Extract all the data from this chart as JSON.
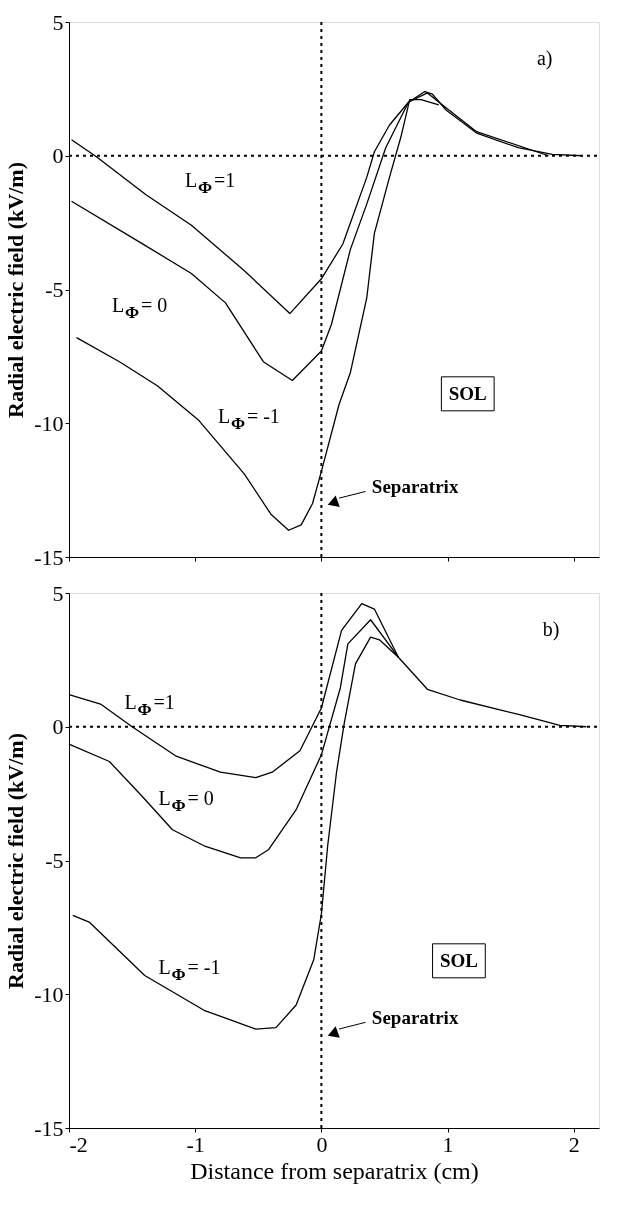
{
  "chart_data": [
    {
      "type": "line",
      "ylabel": "Radial electric field (kV/m)",
      "xlim": [
        -2,
        2.2
      ],
      "xticks": [
        -2,
        -1,
        0,
        1,
        2
      ],
      "ylim": [
        -15,
        5
      ],
      "yticks": [
        -15,
        -10,
        -5,
        0,
        5
      ],
      "tick_labels": "y",
      "grid": false,
      "line_style": "solid",
      "marker": "none",
      "annotations": [
        "a)",
        "SOL"
      ],
      "ref_lines": [
        {
          "axis": "x",
          "value": 0,
          "label": "Separatrix",
          "line_style": "dotted",
          "color": "#000000"
        },
        {
          "axis": "y",
          "value": 0,
          "line_style": "dotted",
          "color": "#000000"
        }
      ],
      "series": [
        {
          "name": "L$_{Φ}$=1",
          "color": "#000000",
          "x": [
            -1.98,
            -1.78,
            -1.39,
            -1.03,
            -0.61,
            -0.25,
            0,
            0.17,
            0.36,
            0.42,
            0.54,
            0.69,
            0.82,
            0.88,
            0.99,
            1.23,
            1.56,
            1.83,
            2.07
          ],
          "values": [
            0.6,
            -0.05,
            -1.46,
            -2.6,
            -4.3,
            -5.9,
            -4.6,
            -3.3,
            -0.8,
            0.15,
            1.15,
            2.0,
            2.4,
            2.3,
            1.7,
            0.85,
            0.3,
            0.05,
            0
          ]
        },
        {
          "name": "L$_{Φ}$= 0",
          "color": "#000000",
          "x": [
            -1.98,
            -1.45,
            -1.03,
            -0.76,
            -0.46,
            -0.23,
            0,
            0.08,
            0.23,
            0.36,
            0.51,
            0.69,
            0.84,
            0.96,
            1.23,
            1.8
          ],
          "values": [
            -1.7,
            -3.2,
            -4.4,
            -5.5,
            -7.7,
            -8.4,
            -7.3,
            -6.3,
            -3.5,
            -1.8,
            0.3,
            2.0,
            2.35,
            1.9,
            0.9,
            0
          ]
        },
        {
          "name": "L$_{Φ}$= -1",
          "color": "#000000",
          "x": [
            -1.94,
            -1.6,
            -1.3,
            -0.97,
            -0.61,
            -0.4,
            -0.26,
            -0.16,
            -0.07,
            0,
            0.14,
            0.23,
            0.36,
            0.42,
            0.54,
            0.63,
            0.7,
            0.79,
            0.93
          ],
          "values": [
            -6.8,
            -7.7,
            -8.6,
            -9.9,
            -11.9,
            -13.4,
            -14.0,
            -13.8,
            -13.0,
            -11.8,
            -9.3,
            -8.1,
            -5.3,
            -2.9,
            -0.8,
            0.7,
            2.1,
            2.1,
            1.9
          ]
        }
      ]
    },
    {
      "type": "line",
      "xlabel": "Distance from separatrix (cm)",
      "ylabel": "Radial electric field (kV/m)",
      "xlim": [
        -2,
        2.2
      ],
      "xticks": [
        -2,
        -1,
        0,
        1,
        2
      ],
      "ylim": [
        -15,
        5
      ],
      "yticks": [
        -15,
        -10,
        -5,
        0,
        5
      ],
      "grid": false,
      "line_style": "solid",
      "marker": "none",
      "annotations": [
        "b)",
        "SOL"
      ],
      "ref_lines": [
        {
          "axis": "x",
          "value": 0,
          "label": "Separatrix",
          "line_style": "dotted",
          "color": "#000000"
        },
        {
          "axis": "y",
          "value": 0,
          "line_style": "dotted",
          "color": "#000000"
        }
      ],
      "series": [
        {
          "name": "L$_{Φ}$=1",
          "color": "#000000",
          "x": [
            -2,
            -1.75,
            -1.5,
            -1.15,
            -0.8,
            -0.52,
            -0.39,
            -0.17,
            0,
            0.16,
            0.32,
            0.42,
            0.61,
            0.84,
            1.1,
            1.57,
            1.89,
            2.1
          ],
          "values": [
            1.2,
            0.85,
            0,
            -1.1,
            -1.7,
            -1.9,
            -1.7,
            -0.9,
            0.7,
            3.6,
            4.6,
            4.4,
            2.6,
            1.4,
            1.0,
            0.45,
            0.05,
            0
          ]
        },
        {
          "name": "L$_{Φ}$= 0",
          "color": "#000000",
          "x": [
            -2,
            -1.68,
            -1.43,
            -1.18,
            -0.93,
            -0.64,
            -0.52,
            -0.42,
            -0.2,
            0,
            0.15,
            0.21,
            0.39,
            0.61
          ],
          "values": [
            -0.65,
            -1.3,
            -2.55,
            -3.85,
            -4.45,
            -4.9,
            -4.9,
            -4.6,
            -3.1,
            -1.05,
            1.45,
            3.1,
            4.0,
            2.6
          ]
        },
        {
          "name": "L$_{Φ}$= -1",
          "color": "#000000",
          "x": [
            -1.97,
            -1.84,
            -1.4,
            -0.93,
            -0.52,
            -0.36,
            -0.2,
            -0.06,
            0,
            0.05,
            0.12,
            0.18,
            0.27,
            0.39,
            0.46,
            0.61
          ],
          "values": [
            -7.05,
            -7.3,
            -9.3,
            -10.6,
            -11.3,
            -11.25,
            -10.4,
            -8.7,
            -7.0,
            -4.45,
            -1.7,
            0.1,
            2.35,
            3.35,
            3.25,
            2.6
          ]
        }
      ]
    }
  ]
}
